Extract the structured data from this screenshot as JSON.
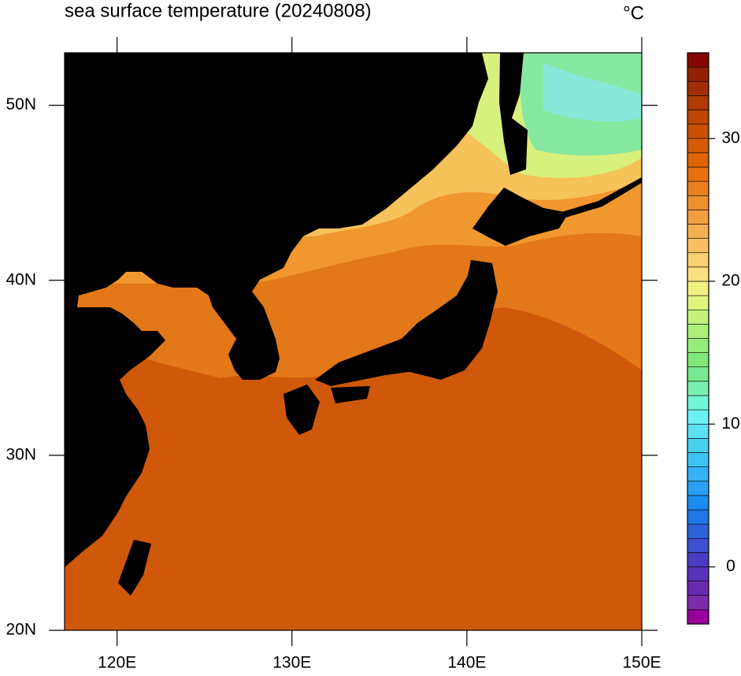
{
  "chart_data": {
    "type": "map",
    "title": "sea surface temperature (20240808)",
    "units": "°C",
    "xlim": [
      117,
      150
    ],
    "ylim": [
      20,
      53
    ],
    "xticks": [
      {
        "value": 120,
        "label": "120E"
      },
      {
        "value": 130,
        "label": "130E"
      },
      {
        "value": 140,
        "label": "140E"
      },
      {
        "value": 150,
        "label": "150E"
      }
    ],
    "yticks": [
      {
        "value": 20,
        "label": "20N"
      },
      {
        "value": 30,
        "label": "30N"
      },
      {
        "value": 40,
        "label": "40N"
      },
      {
        "value": 50,
        "label": "50N"
      }
    ],
    "colorbar": {
      "lim": [
        -4,
        36
      ],
      "ticks": [
        0,
        10,
        20,
        30
      ],
      "colors": [
        "#990099",
        "#7b2ca6",
        "#6a2ab0",
        "#5a32b8",
        "#4a3cc0",
        "#3c4fcc",
        "#2e63d8",
        "#1f78e6",
        "#1a8cf0",
        "#2a9ff5",
        "#36b2f5",
        "#3ec4f2",
        "#48d0f0",
        "#5ee0f2",
        "#6ef0f2",
        "#74f5d8",
        "#78f0b0",
        "#7ae890",
        "#80e878",
        "#96ec78",
        "#aaf07a",
        "#c4f27c",
        "#e0f47e",
        "#f2f080",
        "#fae080",
        "#fad070",
        "#f8c060",
        "#f4b050",
        "#f0a040",
        "#ec9030",
        "#e88020",
        "#e47010",
        "#de6408",
        "#d45a04",
        "#c85004",
        "#bc4604",
        "#ae3a04",
        "#a02e04",
        "#922004",
        "#840800"
      ]
    }
  }
}
